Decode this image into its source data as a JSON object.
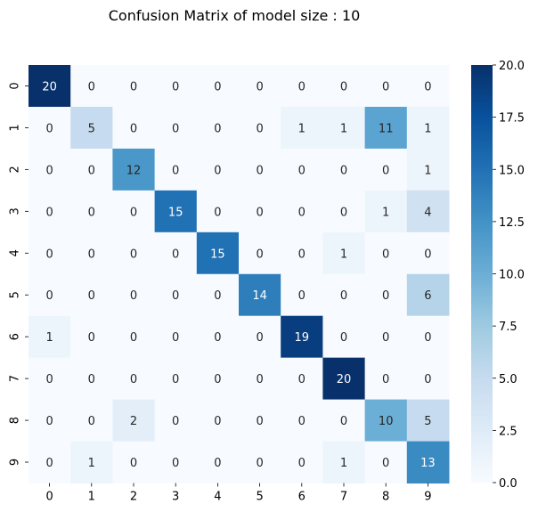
{
  "chart_data": {
    "type": "heatmap",
    "title": "Confusion Matrix of model size : 10",
    "xlabel": "",
    "ylabel": "",
    "x_categories": [
      "0",
      "1",
      "2",
      "3",
      "4",
      "5",
      "6",
      "7",
      "8",
      "9"
    ],
    "y_categories": [
      "0",
      "1",
      "2",
      "3",
      "4",
      "5",
      "6",
      "7",
      "8",
      "9"
    ],
    "values": [
      [
        20,
        0,
        0,
        0,
        0,
        0,
        0,
        0,
        0,
        0
      ],
      [
        0,
        5,
        0,
        0,
        0,
        0,
        1,
        1,
        11,
        1
      ],
      [
        0,
        0,
        12,
        0,
        0,
        0,
        0,
        0,
        0,
        1
      ],
      [
        0,
        0,
        0,
        15,
        0,
        0,
        0,
        0,
        1,
        4
      ],
      [
        0,
        0,
        0,
        0,
        15,
        0,
        0,
        1,
        0,
        0
      ],
      [
        0,
        0,
        0,
        0,
        0,
        14,
        0,
        0,
        0,
        6
      ],
      [
        1,
        0,
        0,
        0,
        0,
        0,
        19,
        0,
        0,
        0
      ],
      [
        0,
        0,
        0,
        0,
        0,
        0,
        0,
        20,
        0,
        0
      ],
      [
        0,
        0,
        2,
        0,
        0,
        0,
        0,
        0,
        10,
        5
      ],
      [
        0,
        1,
        0,
        0,
        0,
        0,
        0,
        1,
        0,
        13
      ]
    ],
    "colormap": "Blues",
    "vmin": 0,
    "vmax": 20,
    "colorbar_ticks": [
      "0.0",
      "2.5",
      "5.0",
      "7.5",
      "10.0",
      "12.5",
      "15.0",
      "17.5",
      "20.0"
    ],
    "colorbar_tick_values": [
      0,
      2.5,
      5,
      7.5,
      10,
      12.5,
      15,
      17.5,
      20
    ],
    "annotations": true,
    "grid": false
  }
}
